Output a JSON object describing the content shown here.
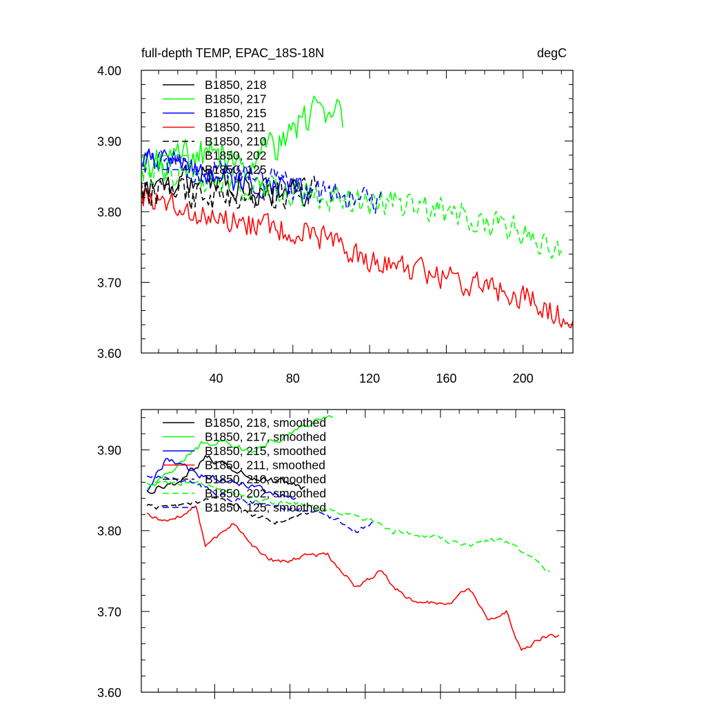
{
  "chart_data": [
    {
      "type": "line",
      "title_left": "full-depth TEMP, EPAC_18S-18N",
      "title_right": "degC",
      "xlim": [
        1,
        226
      ],
      "ylim": [
        3.6,
        4.0
      ],
      "x_major_ticks": [
        40,
        80,
        120,
        160,
        200
      ],
      "x_tick_labels": [
        "40",
        "80",
        "120",
        "160",
        "200"
      ],
      "y_major_ticks": [
        3.6,
        3.7,
        3.8,
        3.9,
        4.0
      ],
      "y_tick_labels": [
        "3.60",
        "3.70",
        "3.80",
        "3.90",
        "4.00"
      ],
      "legend": [
        {
          "label": "B1850, 218",
          "color": "#000000",
          "dash": "solid"
        },
        {
          "label": "B1850, 217",
          "color": "#00ff00",
          "dash": "solid"
        },
        {
          "label": "B1850, 215",
          "color": "#0000ff",
          "dash": "solid"
        },
        {
          "label": "B1850, 211",
          "color": "#ff0000",
          "dash": "solid"
        },
        {
          "label": "B1850, 210",
          "color": "#000000",
          "dash": "dashed"
        },
        {
          "label": "B1850, 202",
          "color": "#00ff00",
          "dash": "dashed"
        },
        {
          "label": "B1850, 125",
          "color": "#0000ff",
          "dash": "dashed"
        }
      ],
      "series": [
        {
          "name": "B1850, 218",
          "color": "#000000",
          "dash": "solid",
          "x": [
            1,
            35,
            60,
            90
          ],
          "y": [
            3.83,
            3.85,
            3.83,
            3.82
          ],
          "noise": 0.025
        },
        {
          "name": "B1850, 217",
          "color": "#00ff00",
          "dash": "solid",
          "x": [
            1,
            30,
            60,
            80,
            95,
            106
          ],
          "y": [
            3.86,
            3.88,
            3.87,
            3.91,
            3.95,
            3.94
          ],
          "noise": 0.03
        },
        {
          "name": "B1850, 215",
          "color": "#0000ff",
          "dash": "solid",
          "x": [
            1,
            20,
            50,
            85
          ],
          "y": [
            3.88,
            3.87,
            3.84,
            3.83
          ],
          "noise": 0.02
        },
        {
          "name": "B1850, 211",
          "color": "#ff0000",
          "dash": "solid",
          "x": [
            1,
            20,
            35,
            60,
            90,
            110,
            140,
            170,
            200,
            226
          ],
          "y": [
            3.82,
            3.81,
            3.79,
            3.78,
            3.77,
            3.74,
            3.72,
            3.7,
            3.68,
            3.64
          ],
          "noise": 0.022
        },
        {
          "name": "B1850, 210",
          "color": "#000000",
          "dash": "dashed",
          "x": [
            1,
            40,
            70,
            93
          ],
          "y": [
            3.83,
            3.82,
            3.82,
            3.84
          ],
          "noise": 0.025
        },
        {
          "name": "B1850, 202",
          "color": "#00ff00",
          "dash": "dashed",
          "x": [
            1,
            50,
            100,
            135,
            160,
            190,
            220
          ],
          "y": [
            3.86,
            3.84,
            3.82,
            3.81,
            3.8,
            3.78,
            3.75
          ],
          "noise": 0.025
        },
        {
          "name": "B1850, 125",
          "color": "#0000ff",
          "dash": "dashed",
          "x": [
            1,
            30,
            70,
            100,
            126
          ],
          "y": [
            3.87,
            3.86,
            3.84,
            3.82,
            3.81
          ],
          "noise": 0.025
        }
      ]
    },
    {
      "type": "line",
      "xlim": [
        1,
        226
      ],
      "ylim": [
        3.6,
        3.95
      ],
      "x_major_ticks": [
        40,
        80,
        120,
        160,
        200
      ],
      "y_major_ticks": [
        3.6,
        3.7,
        3.8,
        3.9
      ],
      "y_tick_labels": [
        "3.60",
        "3.70",
        "3.80",
        "3.90"
      ],
      "legend": [
        {
          "label": "B1850, 218, smoothed",
          "color": "#000000",
          "dash": "solid"
        },
        {
          "label": "B1850, 217, smoothed",
          "color": "#00ff00",
          "dash": "solid"
        },
        {
          "label": "B1850, 215, smoothed",
          "color": "#0000ff",
          "dash": "solid"
        },
        {
          "label": "B1850, 211, smoothed",
          "color": "#ff0000",
          "dash": "solid"
        },
        {
          "label": "B1850, 210, smoothed",
          "color": "#000000",
          "dash": "dashed"
        },
        {
          "label": "B1850, 202, smoothed",
          "color": "#00ff00",
          "dash": "dashed"
        },
        {
          "label": "B1850, 125, smoothed",
          "color": "#0000ff",
          "dash": "dashed"
        }
      ],
      "series": [
        {
          "name": "B1850, 218, smoothed",
          "color": "#000000",
          "dash": "solid",
          "x": [
            4,
            20,
            35,
            55,
            75,
            88
          ],
          "y": [
            3.85,
            3.86,
            3.89,
            3.87,
            3.86,
            3.85
          ],
          "noise": 0.008
        },
        {
          "name": "B1850, 217, smoothed",
          "color": "#00ff00",
          "dash": "solid",
          "x": [
            4,
            20,
            35,
            60,
            80,
            95,
            103
          ],
          "y": [
            3.85,
            3.88,
            3.91,
            3.9,
            3.92,
            3.94,
            3.94
          ],
          "noise": 0.008
        },
        {
          "name": "B1850, 215, smoothed",
          "color": "#0000ff",
          "dash": "solid",
          "x": [
            4,
            15,
            30,
            50,
            65,
            83
          ],
          "y": [
            3.85,
            3.89,
            3.87,
            3.86,
            3.85,
            3.84
          ],
          "noise": 0.007
        },
        {
          "name": "B1850, 211, smoothed",
          "color": "#ff0000",
          "dash": "solid",
          "x": [
            4,
            15,
            30,
            35,
            50,
            65,
            75,
            90,
            100,
            115,
            128,
            140,
            150,
            165,
            175,
            185,
            195,
            203,
            215,
            223
          ],
          "y": [
            3.82,
            3.81,
            3.83,
            3.78,
            3.81,
            3.77,
            3.76,
            3.77,
            3.77,
            3.73,
            3.75,
            3.72,
            3.71,
            3.71,
            3.73,
            3.69,
            3.7,
            3.65,
            3.67,
            3.67
          ],
          "noise": 0.005
        },
        {
          "name": "B1850, 210, smoothed",
          "color": "#000000",
          "dash": "dashed",
          "x": [
            4,
            20,
            40,
            60,
            75,
            90
          ],
          "y": [
            3.83,
            3.83,
            3.84,
            3.82,
            3.81,
            3.82
          ],
          "noise": 0.006
        },
        {
          "name": "B1850, 202, smoothed",
          "color": "#00ff00",
          "dash": "dashed",
          "x": [
            4,
            30,
            60,
            90,
            115,
            135,
            160,
            175,
            188,
            200,
            212,
            218
          ],
          "y": [
            3.86,
            3.86,
            3.84,
            3.83,
            3.82,
            3.8,
            3.79,
            3.78,
            3.79,
            3.78,
            3.76,
            3.75
          ],
          "noise": 0.006
        },
        {
          "name": "B1850, 125, smoothed",
          "color": "#0000ff",
          "dash": "dashed",
          "x": [
            4,
            25,
            50,
            75,
            100,
            115,
            125
          ],
          "y": [
            3.87,
            3.86,
            3.84,
            3.83,
            3.82,
            3.8,
            3.81
          ],
          "noise": 0.006
        }
      ]
    }
  ]
}
